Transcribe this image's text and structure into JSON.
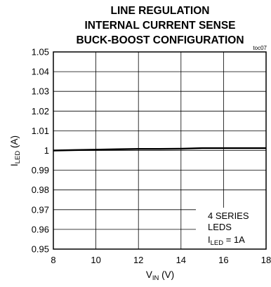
{
  "chart_data": {
    "type": "line",
    "title": [
      "LINE REGULATION",
      "INTERNAL CURRENT SENSE",
      "BUCK-BOOST CONFIGURATION"
    ],
    "figure_tag": "toc07",
    "xlabel": {
      "main": "V",
      "sub": "IN",
      "unit": " (V)"
    },
    "ylabel": {
      "main": "I",
      "sub": "LED",
      "unit": " (A)"
    },
    "xlim": [
      8,
      18
    ],
    "ylim": [
      0.95,
      1.05
    ],
    "x_ticks": [
      8,
      10,
      12,
      14,
      16,
      18
    ],
    "y_ticks": [
      "0.95",
      "0.96",
      "0.97",
      "0.98",
      "0.99",
      "1",
      "1.01",
      "1.02",
      "1.03",
      "1.04",
      "1.05"
    ],
    "grid": true,
    "annotation": {
      "line1": "4 SERIES",
      "line2": "LEDS",
      "line3_main": "I",
      "line3_sub": "LED",
      "line3_rest": " = 1A"
    },
    "series": [
      {
        "color": "#000000",
        "x": [
          8,
          9,
          10,
          11,
          12,
          13,
          14,
          15,
          16,
          17,
          18
        ],
        "y": [
          1.0,
          1.0002,
          1.0004,
          1.0006,
          1.0008,
          1.0008,
          1.0009,
          1.0012,
          1.0012,
          1.0012,
          1.0012
        ]
      }
    ]
  }
}
